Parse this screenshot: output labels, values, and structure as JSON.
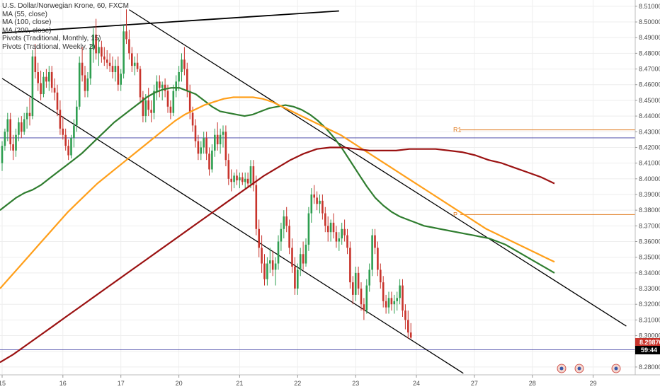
{
  "legend": {
    "symbol": "U.S. Dollar/Norwegian Krone, 60, FXCM",
    "indicators": [
      "MA (55, close)",
      "MA (100, close)",
      "MA (200, close)",
      "Pivots (Traditional, Monthly, 15)",
      "Pivots (Traditional, Weekly, 2)"
    ]
  },
  "colors": {
    "up": "#2e9e50",
    "down": "#c8342c",
    "ma55": "#2f7d2f",
    "ma100": "#ff9f1a",
    "ma200": "#9b1212",
    "pivot": "#e07b20",
    "hline": "#3a3aa0",
    "channel": "#000000",
    "last_price_tag": "#c8342c",
    "countdown_tag": "#000000"
  },
  "chart_data": {
    "type": "candlestick",
    "ylim": [
      8.275,
      8.514
    ],
    "y_ticks": [
      "8.28000",
      "8.29000",
      "8.30000",
      "8.31000",
      "8.32000",
      "8.33000",
      "8.34000",
      "8.35000",
      "8.36000",
      "8.37000",
      "8.38000",
      "8.39000",
      "8.40000",
      "8.41000",
      "8.42000",
      "8.43000",
      "8.44000",
      "8.45000",
      "8.46000",
      "8.47000",
      "8.48000",
      "8.49000",
      "8.50000",
      "8.51000"
    ],
    "x_ticks": [
      "15",
      "16",
      "17",
      "20",
      "21",
      "22",
      "23",
      "24",
      "27",
      "28",
      "29"
    ],
    "x_tick_index": [
      0,
      22,
      43,
      64,
      86,
      107,
      128,
      150,
      171,
      192,
      214
    ],
    "candles": [
      [
        8.41,
        8.424,
        8.405,
        8.421
      ],
      [
        8.421,
        8.432,
        8.418,
        8.43
      ],
      [
        8.43,
        8.442,
        8.424,
        8.438
      ],
      [
        8.438,
        8.442,
        8.418,
        8.422
      ],
      [
        8.422,
        8.428,
        8.412,
        8.418
      ],
      [
        8.418,
        8.432,
        8.414,
        8.428
      ],
      [
        8.428,
        8.439,
        8.424,
        8.436
      ],
      [
        8.436,
        8.44,
        8.426,
        8.43
      ],
      [
        8.43,
        8.442,
        8.428,
        8.438
      ],
      [
        8.438,
        8.446,
        8.432,
        8.442
      ],
      [
        8.442,
        8.452,
        8.434,
        8.44
      ],
      [
        8.44,
        8.482,
        8.438,
        8.478
      ],
      [
        8.478,
        8.486,
        8.464,
        8.468
      ],
      [
        8.468,
        8.474,
        8.456,
        8.461
      ],
      [
        8.461,
        8.469,
        8.45,
        8.454
      ],
      [
        8.454,
        8.468,
        8.452,
        8.465
      ],
      [
        8.465,
        8.47,
        8.458,
        8.462
      ],
      [
        8.462,
        8.472,
        8.456,
        8.468
      ],
      [
        8.468,
        8.472,
        8.455,
        8.458
      ],
      [
        8.458,
        8.464,
        8.45,
        8.455
      ],
      [
        8.455,
        8.46,
        8.44,
        8.444
      ],
      [
        8.444,
        8.45,
        8.428,
        8.432
      ],
      [
        8.432,
        8.44,
        8.425,
        8.428
      ],
      [
        8.428,
        8.432,
        8.418,
        8.421
      ],
      [
        8.421,
        8.425,
        8.412,
        8.415
      ],
      [
        8.415,
        8.428,
        8.413,
        8.426
      ],
      [
        8.426,
        8.438,
        8.42,
        8.434
      ],
      [
        8.434,
        8.45,
        8.43,
        8.446
      ],
      [
        8.446,
        8.478,
        8.444,
        8.474
      ],
      [
        8.474,
        8.484,
        8.462,
        8.466
      ],
      [
        8.466,
        8.472,
        8.452,
        8.456
      ],
      [
        8.456,
        8.468,
        8.452,
        8.464
      ],
      [
        8.464,
        8.486,
        8.46,
        8.483
      ],
      [
        8.483,
        8.496,
        8.474,
        8.492
      ],
      [
        8.492,
        8.502,
        8.476,
        8.48
      ],
      [
        8.48,
        8.49,
        8.472,
        8.484
      ],
      [
        8.484,
        8.488,
        8.474,
        8.478
      ],
      [
        8.478,
        8.484,
        8.472,
        8.476
      ],
      [
        8.476,
        8.482,
        8.47,
        8.474
      ],
      [
        8.474,
        8.48,
        8.468,
        8.472
      ],
      [
        8.472,
        8.478,
        8.464,
        8.468
      ],
      [
        8.468,
        8.476,
        8.462,
        8.472
      ],
      [
        8.472,
        8.478,
        8.456,
        8.46
      ],
      [
        8.46,
        8.47,
        8.456,
        8.467
      ],
      [
        8.467,
        8.498,
        8.464,
        8.494
      ],
      [
        8.494,
        8.508,
        8.486,
        8.489
      ],
      [
        8.489,
        8.495,
        8.476,
        8.48
      ],
      [
        8.48,
        8.484,
        8.468,
        8.472
      ],
      [
        8.472,
        8.478,
        8.466,
        8.474
      ],
      [
        8.474,
        8.48,
        8.468,
        8.47
      ],
      [
        8.47,
        8.472,
        8.448,
        8.452
      ],
      [
        8.452,
        8.456,
        8.436,
        8.44
      ],
      [
        8.44,
        8.454,
        8.436,
        8.45
      ],
      [
        8.45,
        8.458,
        8.44,
        8.444
      ],
      [
        8.444,
        8.45,
        8.436,
        8.442
      ],
      [
        8.442,
        8.46,
        8.438,
        8.456
      ],
      [
        8.456,
        8.466,
        8.45,
        8.462
      ],
      [
        8.462,
        8.466,
        8.452,
        8.458
      ],
      [
        8.458,
        8.462,
        8.45,
        8.46
      ],
      [
        8.46,
        8.464,
        8.452,
        8.456
      ],
      [
        8.456,
        8.46,
        8.442,
        8.446
      ],
      [
        8.446,
        8.45,
        8.438,
        8.442
      ],
      [
        8.442,
        8.46,
        8.44,
        8.456
      ],
      [
        8.456,
        8.466,
        8.452,
        8.462
      ],
      [
        8.462,
        8.472,
        8.456,
        8.468
      ],
      [
        8.468,
        8.48,
        8.462,
        8.476
      ],
      [
        8.476,
        8.484,
        8.466,
        8.47
      ],
      [
        8.47,
        8.474,
        8.452,
        8.456
      ],
      [
        8.456,
        8.46,
        8.438,
        8.442
      ],
      [
        8.442,
        8.446,
        8.43,
        8.434
      ],
      [
        8.434,
        8.438,
        8.42,
        8.424
      ],
      [
        8.424,
        8.428,
        8.412,
        8.416
      ],
      [
        8.416,
        8.424,
        8.412,
        8.42
      ],
      [
        8.42,
        8.43,
        8.416,
        8.426
      ],
      [
        8.426,
        8.43,
        8.412,
        8.416
      ],
      [
        8.416,
        8.42,
        8.402,
        8.406
      ],
      [
        8.406,
        8.422,
        8.404,
        8.418
      ],
      [
        8.418,
        8.432,
        8.414,
        8.428
      ],
      [
        8.428,
        8.436,
        8.418,
        8.422
      ],
      [
        8.422,
        8.432,
        8.416,
        8.428
      ],
      [
        8.428,
        8.434,
        8.42,
        8.43
      ],
      [
        8.43,
        8.434,
        8.408,
        8.412
      ],
      [
        8.412,
        8.416,
        8.396,
        8.4
      ],
      [
        8.4,
        8.406,
        8.392,
        8.398
      ],
      [
        8.398,
        8.404,
        8.394,
        8.402
      ],
      [
        8.402,
        8.406,
        8.396,
        8.399
      ],
      [
        8.399,
        8.404,
        8.394,
        8.401
      ],
      [
        8.401,
        8.404,
        8.396,
        8.398
      ],
      [
        8.398,
        8.404,
        8.394,
        8.4
      ],
      [
        8.4,
        8.404,
        8.394,
        8.397
      ],
      [
        8.397,
        8.412,
        8.394,
        8.408
      ],
      [
        8.408,
        8.412,
        8.392,
        8.396
      ],
      [
        8.396,
        8.402,
        8.364,
        8.368
      ],
      [
        8.368,
        8.374,
        8.35,
        8.356
      ],
      [
        8.356,
        8.364,
        8.34,
        8.346
      ],
      [
        8.346,
        8.352,
        8.332,
        8.336
      ],
      [
        8.336,
        8.35,
        8.332,
        8.346
      ],
      [
        8.346,
        8.356,
        8.34,
        8.348
      ],
      [
        8.348,
        8.354,
        8.338,
        8.342
      ],
      [
        8.342,
        8.35,
        8.332,
        8.346
      ],
      [
        8.346,
        8.364,
        8.342,
        8.36
      ],
      [
        8.36,
        8.372,
        8.354,
        8.368
      ],
      [
        8.368,
        8.38,
        8.362,
        8.376
      ],
      [
        8.376,
        8.382,
        8.366,
        8.37
      ],
      [
        8.37,
        8.374,
        8.352,
        8.356
      ],
      [
        8.356,
        8.362,
        8.34,
        8.344
      ],
      [
        8.344,
        8.35,
        8.326,
        8.33
      ],
      [
        8.33,
        8.346,
        8.326,
        8.342
      ],
      [
        8.342,
        8.356,
        8.338,
        8.352
      ],
      [
        8.352,
        8.36,
        8.342,
        8.346
      ],
      [
        8.346,
        8.362,
        8.344,
        8.358
      ],
      [
        8.358,
        8.382,
        8.354,
        8.378
      ],
      [
        8.378,
        8.394,
        8.372,
        8.39
      ],
      [
        8.39,
        8.396,
        8.384,
        8.388
      ],
      [
        8.388,
        8.392,
        8.38,
        8.384
      ],
      [
        8.384,
        8.39,
        8.378,
        8.386
      ],
      [
        8.386,
        8.39,
        8.374,
        8.378
      ],
      [
        8.378,
        8.382,
        8.366,
        8.37
      ],
      [
        8.37,
        8.376,
        8.36,
        8.366
      ],
      [
        8.366,
        8.374,
        8.36,
        8.372
      ],
      [
        8.372,
        8.378,
        8.362,
        8.366
      ],
      [
        8.366,
        8.37,
        8.356,
        8.36
      ],
      [
        8.36,
        8.366,
        8.354,
        8.362
      ],
      [
        8.362,
        8.372,
        8.358,
        8.368
      ],
      [
        8.368,
        8.374,
        8.36,
        8.364
      ],
      [
        8.364,
        8.368,
        8.352,
        8.356
      ],
      [
        8.356,
        8.36,
        8.33,
        8.334
      ],
      [
        8.334,
        8.338,
        8.32,
        8.326
      ],
      [
        8.326,
        8.344,
        8.322,
        8.34
      ],
      [
        8.34,
        8.344,
        8.326,
        8.33
      ],
      [
        8.33,
        8.334,
        8.316,
        8.32
      ],
      [
        8.32,
        8.324,
        8.31,
        8.316
      ],
      [
        8.316,
        8.336,
        8.314,
        8.332
      ],
      [
        8.332,
        8.346,
        8.328,
        8.342
      ],
      [
        8.342,
        8.368,
        8.338,
        8.364
      ],
      [
        8.364,
        8.368,
        8.352,
        8.356
      ],
      [
        8.356,
        8.36,
        8.338,
        8.342
      ],
      [
        8.342,
        8.346,
        8.33,
        8.334
      ],
      [
        8.334,
        8.338,
        8.318,
        8.322
      ],
      [
        8.322,
        8.326,
        8.314,
        8.318
      ],
      [
        8.318,
        8.328,
        8.314,
        8.324
      ],
      [
        8.324,
        8.328,
        8.316,
        8.32
      ],
      [
        8.32,
        8.326,
        8.314,
        8.322
      ],
      [
        8.322,
        8.328,
        8.316,
        8.324
      ],
      [
        8.324,
        8.336,
        8.32,
        8.332
      ],
      [
        8.332,
        8.336,
        8.312,
        8.316
      ],
      [
        8.316,
        8.32,
        8.304,
        8.31
      ],
      [
        8.31,
        8.316,
        8.298,
        8.302
      ],
      [
        8.302,
        8.308,
        8.298,
        8.2987
      ]
    ],
    "moving_averages": [
      {
        "name": "MA (55, close)",
        "values": [
          8.38,
          8.384,
          8.388,
          8.391,
          8.393,
          8.396,
          8.4,
          8.404,
          8.408,
          8.412,
          8.416,
          8.421,
          8.426,
          8.431,
          8.436,
          8.44,
          8.444,
          8.448,
          8.452,
          8.455,
          8.457,
          8.458,
          8.458,
          8.456,
          8.454,
          8.45,
          8.446,
          8.443,
          8.442,
          8.441,
          8.44,
          8.441,
          8.443,
          8.445,
          8.446,
          8.447,
          8.446,
          8.444,
          8.441,
          8.437,
          8.432,
          8.426,
          8.419,
          8.411,
          8.403,
          8.395,
          8.388,
          8.383,
          8.379,
          8.376,
          8.374,
          8.372,
          8.37,
          8.369,
          8.368,
          8.367,
          8.366,
          8.365,
          8.364,
          8.363,
          8.362,
          8.36,
          8.358,
          8.355,
          8.352,
          8.349,
          8.346,
          8.343,
          8.34
        ]
      },
      {
        "name": "MA (100, close)",
        "values": [
          8.33,
          8.337,
          8.344,
          8.351,
          8.358,
          8.365,
          8.372,
          8.379,
          8.385,
          8.391,
          8.397,
          8.402,
          8.407,
          8.412,
          8.417,
          8.422,
          8.427,
          8.432,
          8.437,
          8.441,
          8.444,
          8.447,
          8.449,
          8.451,
          8.452,
          8.452,
          8.452,
          8.451,
          8.449,
          8.446,
          8.443,
          8.44,
          8.437,
          8.434,
          8.431,
          8.428,
          8.424,
          8.42,
          8.416,
          8.412,
          8.408,
          8.404,
          8.4,
          8.396,
          8.392,
          8.388,
          8.384,
          8.38,
          8.376,
          8.372,
          8.368,
          8.365,
          8.362,
          8.359,
          8.356,
          8.353,
          8.35,
          8.347
        ]
      },
      {
        "name": "MA (200, close)",
        "values": [
          8.283,
          8.288,
          8.294,
          8.3,
          8.306,
          8.312,
          8.318,
          8.324,
          8.33,
          8.336,
          8.342,
          8.348,
          8.354,
          8.36,
          8.366,
          8.372,
          8.378,
          8.384,
          8.39,
          8.396,
          8.402,
          8.407,
          8.412,
          8.416,
          8.419,
          8.42,
          8.42,
          8.419,
          8.418,
          8.418,
          8.418,
          8.419,
          8.419,
          8.419,
          8.418,
          8.417,
          8.415,
          8.412,
          8.41,
          8.407,
          8.404,
          8.401,
          8.397
        ]
      }
    ],
    "horizontal_lines": [
      {
        "label": "R1",
        "value": 8.4312
      },
      {
        "label": "P",
        "value": 8.3772
      },
      {
        "label": "",
        "value": 8.4261
      },
      {
        "label": "",
        "value": 8.291
      }
    ],
    "trendlines": [
      {
        "from": [
          0,
          8.493
        ],
        "to": [
          122,
          8.507
        ]
      },
      {
        "from": [
          46,
          8.5078
        ],
        "to": [
          226,
          8.3061
        ]
      },
      {
        "from": [
          0,
          8.464
        ],
        "to": [
          167,
          8.276
        ]
      }
    ],
    "last_price": "8.29870",
    "countdown": "59:44"
  }
}
